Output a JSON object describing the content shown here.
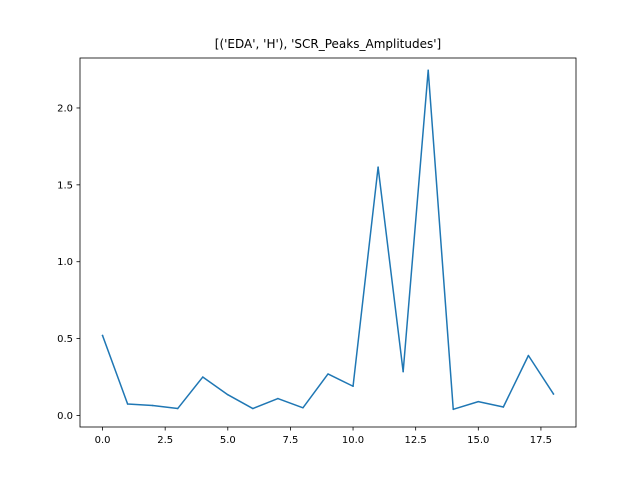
{
  "chart_data": {
    "type": "line",
    "title": "[('EDA', 'H'), 'SCR_Peaks_Amplitudes']",
    "xlabel": "",
    "ylabel": "",
    "xlim": [
      -0.9,
      18.9
    ],
    "ylim": [
      -0.075,
      2.325
    ],
    "x_ticks": [
      0,
      2.5,
      5,
      7.5,
      10,
      12.5,
      15,
      17.5
    ],
    "x_tick_labels": [
      "0.0",
      "2.5",
      "5.0",
      "7.5",
      "10.0",
      "12.5",
      "15.0",
      "17.5"
    ],
    "y_ticks": [
      0,
      0.5,
      1,
      1.5,
      2
    ],
    "y_tick_labels": [
      "0.0",
      "0.5",
      "1.0",
      "1.5",
      "2.0"
    ],
    "grid": false,
    "legend": "none",
    "series": [
      {
        "color": "#1f77b4",
        "x": [
          0,
          1,
          2,
          3,
          4,
          5,
          6,
          7,
          8,
          9,
          10,
          11,
          12,
          13,
          14,
          15,
          16,
          17,
          18
        ],
        "values": [
          0.52,
          0.075,
          0.065,
          0.045,
          0.25,
          0.135,
          0.045,
          0.11,
          0.05,
          0.27,
          0.19,
          1.615,
          0.285,
          2.245,
          0.04,
          0.09,
          0.055,
          0.39,
          0.14
        ]
      }
    ]
  }
}
